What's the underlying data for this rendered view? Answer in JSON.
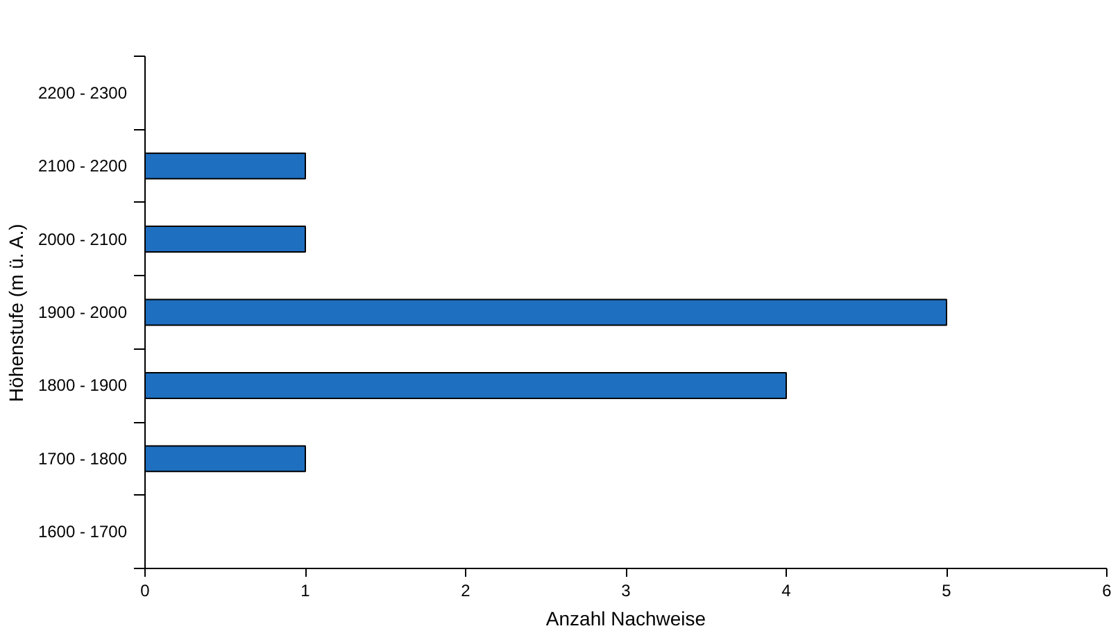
{
  "chart_data": {
    "type": "bar",
    "orientation": "horizontal",
    "xlabel": "Anzahl Nachweise",
    "ylabel": "Höhenstufe (m ü. A.)",
    "categories": [
      "2200 - 2300",
      "2100 - 2200",
      "2000 - 2100",
      "1900 - 2000",
      "1800 - 1900",
      "1700 - 1800",
      "1600 - 1700"
    ],
    "values": [
      0,
      1,
      1,
      5,
      4,
      1,
      0
    ],
    "color": "#1f6fc0",
    "xlim": [
      0,
      6
    ],
    "xticks": [
      0,
      1,
      2,
      3,
      4,
      5,
      6
    ],
    "grid": false
  }
}
